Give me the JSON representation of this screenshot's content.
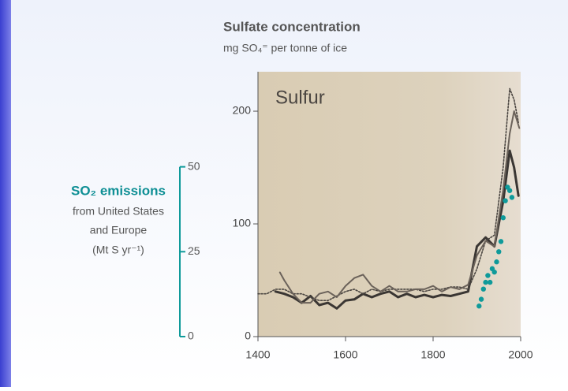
{
  "chart_data": {
    "type": "line",
    "title": "Sulfate concentration",
    "subtitle": "mg SO₄⁼ per tonne of ice",
    "annotation": "Sulfur",
    "y2_label": [
      "SO₂ emissions",
      "from United States",
      "and Europe",
      "(Mt S yr⁻¹)"
    ],
    "xlim": [
      1400,
      2000
    ],
    "xticks": [
      1400,
      1600,
      1800,
      2000
    ],
    "ylim": [
      0,
      235
    ],
    "yticks": [
      0,
      100,
      200
    ],
    "y2lim": [
      0,
      78
    ],
    "y2ticks": [
      0,
      25,
      50
    ],
    "series": [
      {
        "color": "#3a3633",
        "width": 3,
        "dash": "none",
        "x": [
          1440,
          1460,
          1480,
          1500,
          1520,
          1540,
          1560,
          1580,
          1600,
          1620,
          1640,
          1660,
          1680,
          1700,
          1720,
          1740,
          1760,
          1780,
          1800,
          1820,
          1840,
          1860,
          1880,
          1900,
          1920,
          1940,
          1960,
          1975,
          1985,
          1995
        ],
        "values": [
          40,
          38,
          35,
          30,
          36,
          28,
          30,
          25,
          32,
          33,
          38,
          35,
          38,
          40,
          35,
          38,
          35,
          37,
          35,
          37,
          36,
          38,
          40,
          80,
          88,
          80,
          120,
          165,
          150,
          125
        ]
      },
      {
        "color": "#4a4541",
        "width": 1.6,
        "dash": "2,2",
        "x": [
          1400,
          1420,
          1440,
          1460,
          1480,
          1500,
          1520,
          1540,
          1560,
          1580,
          1600,
          1620,
          1640,
          1660,
          1680,
          1700,
          1720,
          1740,
          1760,
          1780,
          1800,
          1820,
          1840,
          1860,
          1880,
          1900,
          1920,
          1940,
          1960,
          1975,
          1985,
          1995
        ],
        "values": [
          38,
          38,
          42,
          42,
          38,
          38,
          35,
          32,
          32,
          36,
          40,
          42,
          38,
          42,
          40,
          42,
          42,
          42,
          42,
          40,
          42,
          42,
          44,
          44,
          42,
          60,
          85,
          90,
          150,
          220,
          210,
          190
        ]
      },
      {
        "color": "#6b625a",
        "width": 2,
        "dash": "none",
        "x": [
          1450,
          1460,
          1480,
          1500,
          1520,
          1540,
          1560,
          1580,
          1600,
          1620,
          1640,
          1660,
          1680,
          1700,
          1720,
          1740,
          1760,
          1780,
          1800,
          1820,
          1840,
          1860,
          1880,
          1900,
          1920,
          1940,
          1960,
          1975,
          1985,
          1997
        ],
        "values": [
          57,
          50,
          38,
          30,
          30,
          38,
          40,
          35,
          45,
          52,
          55,
          45,
          40,
          45,
          40,
          40,
          42,
          42,
          45,
          40,
          44,
          42,
          46,
          72,
          85,
          80,
          130,
          180,
          200,
          185
        ]
      },
      {
        "color": "#0f9a9a",
        "axis": "y2",
        "marker": "dot",
        "x": [
          1905,
          1910,
          1915,
          1920,
          1925,
          1930,
          1935,
          1940,
          1945,
          1950,
          1955,
          1960,
          1965,
          1970,
          1975,
          1980
        ],
        "values": [
          9,
          11,
          14,
          16,
          18,
          16,
          20,
          19,
          22,
          25,
          28,
          35,
          40,
          44,
          43,
          41
        ]
      }
    ]
  }
}
